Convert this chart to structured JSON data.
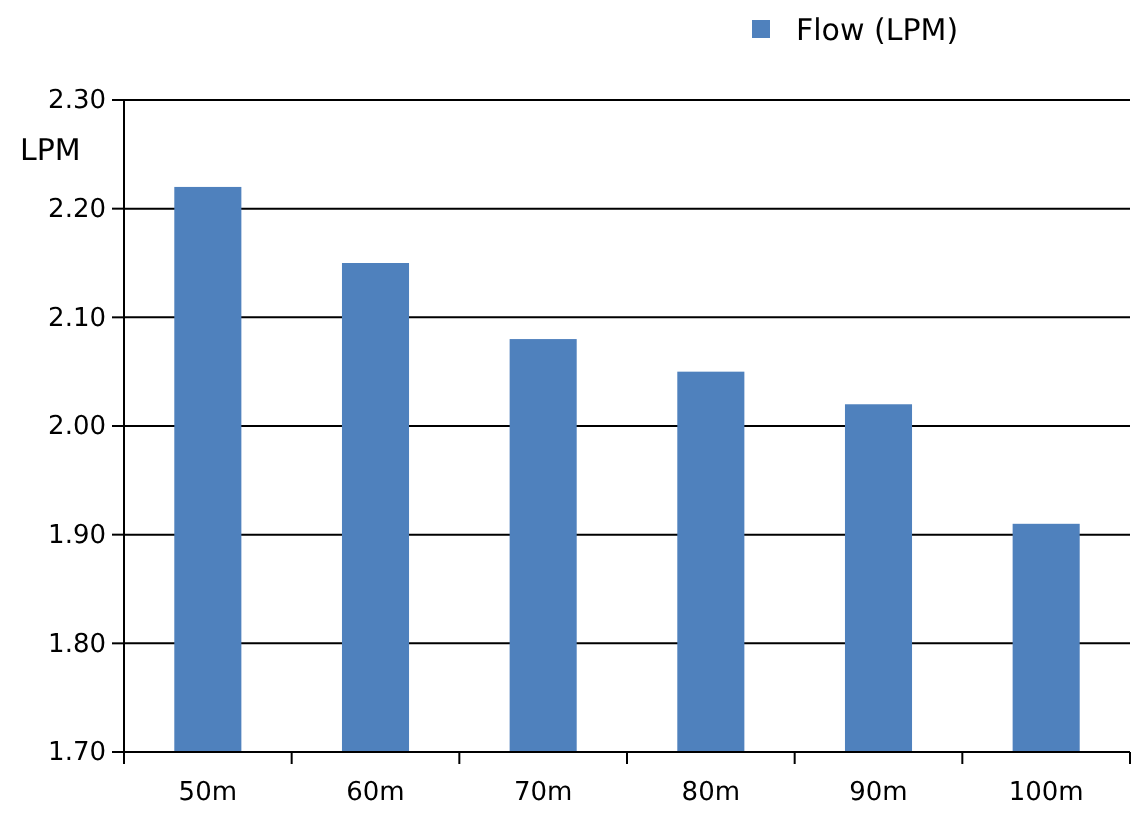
{
  "chart_data": {
    "type": "bar",
    "ylabel": "LPM",
    "categories": [
      "50m",
      "60m",
      "70m",
      "80m",
      "90m",
      "100m"
    ],
    "series": [
      {
        "name": "Flow (LPM)",
        "color": "#4f81bd",
        "values": [
          2.22,
          2.15,
          2.08,
          2.05,
          2.02,
          1.91
        ]
      }
    ],
    "ylim": [
      1.7,
      2.3
    ],
    "yticks": [
      {
        "value": 1.7,
        "label": "1.70"
      },
      {
        "value": 1.8,
        "label": "1.80"
      },
      {
        "value": 1.9,
        "label": "1.90"
      },
      {
        "value": 2.0,
        "label": "2.00"
      },
      {
        "value": 2.1,
        "label": "2.10"
      },
      {
        "value": 2.2,
        "label": "2.20"
      },
      {
        "value": 2.3,
        "label": "2.30"
      }
    ],
    "grid": "y",
    "legend": "top right"
  }
}
